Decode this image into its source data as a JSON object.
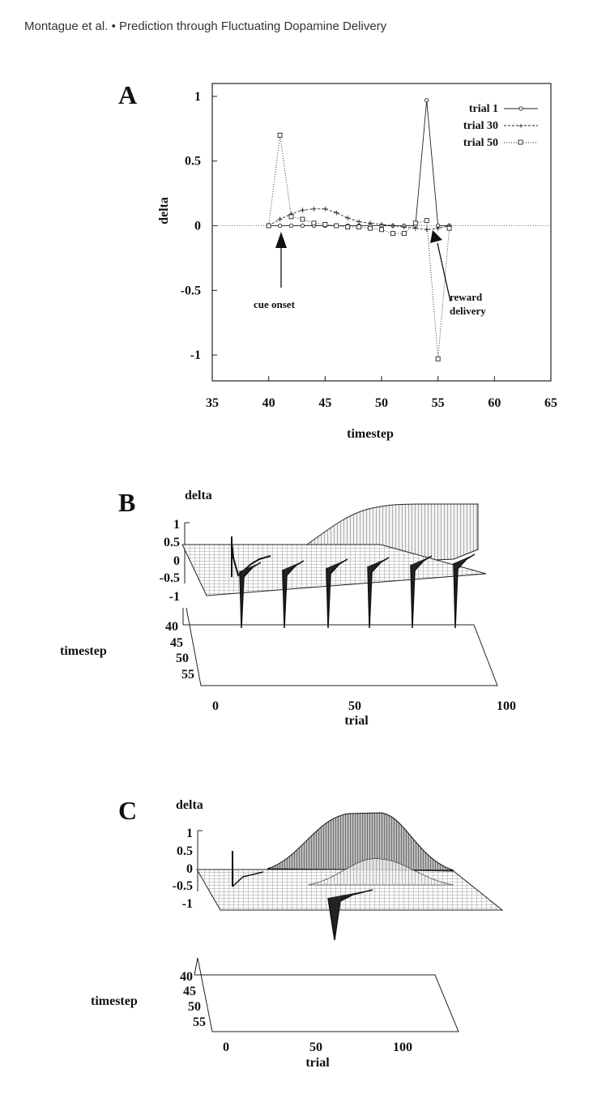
{
  "header": "Montague et al. • Prediction through Fluctuating Dopamine Delivery",
  "panels": {
    "a": "A",
    "b": "B",
    "c": "C"
  },
  "chart_data": [
    {
      "type": "line",
      "panel": "A",
      "xlabel": "timestep",
      "ylabel": "delta",
      "xlim": [
        35,
        65
      ],
      "ylim": [
        -1.2,
        1.1
      ],
      "xticks": [
        "35",
        "40",
        "45",
        "50",
        "55",
        "60",
        "65"
      ],
      "yticks": [
        "1",
        "0.5",
        "0",
        "-0.5",
        "-1"
      ],
      "legend_position": "top-right",
      "series": [
        {
          "name": "trial 1",
          "x": [
            40,
            41,
            42,
            43,
            44,
            45,
            46,
            47,
            48,
            49,
            50,
            51,
            52,
            53,
            54,
            55,
            56
          ],
          "y": [
            0,
            0,
            0,
            0,
            0,
            0,
            0,
            0,
            0,
            0,
            0,
            0,
            0,
            0,
            0.97,
            0,
            0
          ]
        },
        {
          "name": "trial 30",
          "x": [
            40,
            41,
            42,
            43,
            44,
            45,
            46,
            47,
            48,
            49,
            50,
            51,
            52,
            53,
            54,
            55,
            56
          ],
          "y": [
            0,
            0.05,
            0.09,
            0.12,
            0.13,
            0.13,
            0.1,
            0.06,
            0.03,
            0.02,
            0.01,
            0.0,
            -0.01,
            -0.02,
            -0.03,
            -0.02,
            0
          ]
        },
        {
          "name": "trial 50",
          "x": [
            40,
            41,
            42,
            43,
            44,
            45,
            46,
            47,
            48,
            49,
            50,
            51,
            52,
            53,
            54,
            55,
            56
          ],
          "y": [
            0,
            0.7,
            0.07,
            0.05,
            0.02,
            0.01,
            0,
            -0.01,
            -0.01,
            -0.02,
            -0.03,
            -0.06,
            -0.06,
            0.02,
            0.04,
            -1.03,
            -0.02
          ]
        }
      ],
      "annotations": [
        "cue onset",
        "reward delivery"
      ]
    },
    {
      "type": "surface",
      "panel": "B",
      "zlabel": "delta",
      "ylabel": "timestep",
      "xlabel": "trial",
      "zticks": [
        "1",
        "0.5",
        "0",
        "-0.5",
        "-1"
      ],
      "yticks": [
        "40",
        "45",
        "50",
        "55"
      ],
      "xticks": [
        "0",
        "50",
        "100"
      ]
    },
    {
      "type": "surface",
      "panel": "C",
      "zlabel": "delta",
      "ylabel": "timestep",
      "xlabel": "trial",
      "zticks": [
        "1",
        "0.5",
        "0",
        "-0.5",
        "-1"
      ],
      "yticks": [
        "40",
        "45",
        "50",
        "55"
      ],
      "xticks": [
        "0",
        "50",
        "100"
      ]
    }
  ]
}
